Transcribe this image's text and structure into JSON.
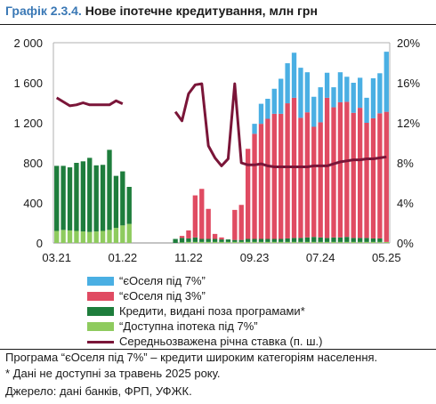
{
  "title": {
    "number": "Графік 2.3.4.",
    "text": "Нове іпотечне кредитування, млн грн"
  },
  "legend": [
    {
      "label": "“єОселя під 7%”",
      "color": "#4aafe3",
      "kind": "bar"
    },
    {
      "label": "“єОселя під 3%”",
      "color": "#e04b62",
      "kind": "bar"
    },
    {
      "label": "Кредити, видані поза програмами*",
      "color": "#1e7d3c",
      "kind": "bar"
    },
    {
      "label": "“Доступна іпотека під 7%”",
      "color": "#8ecb5e",
      "kind": "bar"
    },
    {
      "label": "Середньозважена річна ставка (п. ш.)",
      "color": "#7a1538",
      "kind": "line"
    }
  ],
  "notes": [
    "Програма “єОселя під 7%” – кредити широким категоріям населення.",
    "* Дані не доступні за травень 2025 року.",
    "Джерело: дані банків, ФРП, УФЖК."
  ],
  "chart_data": {
    "type": "bar",
    "stacked": true,
    "left_axis": {
      "ylim": [
        0,
        2000
      ],
      "ticks": [
        "0",
        "400",
        "800",
        "1 200",
        "1 600",
        "2 000"
      ]
    },
    "right_axis": {
      "ylim": [
        0,
        20
      ],
      "ticks": [
        "0%",
        "4%",
        "8%",
        "12%",
        "16%",
        "20%"
      ]
    },
    "x_tick_labels": [
      {
        "index": 0,
        "label": "03.21"
      },
      {
        "index": 10,
        "label": "01.22"
      },
      {
        "index": 20,
        "label": "11.22"
      },
      {
        "index": 30,
        "label": "09.23"
      },
      {
        "index": 40,
        "label": "07.24"
      },
      {
        "index": 50,
        "label": "05.25"
      }
    ],
    "categories_count": 51,
    "series": [
      {
        "name": "Доступна іпотека під 7%",
        "color": "#8ecb5e",
        "values": [
          120,
          130,
          125,
          120,
          115,
          110,
          115,
          120,
          130,
          150,
          175,
          190,
          null,
          null,
          null,
          null,
          null,
          null,
          0,
          5,
          10,
          10,
          10,
          10,
          10,
          10,
          10,
          10,
          10,
          10,
          10,
          10,
          10,
          10,
          10,
          10,
          10,
          10,
          10,
          10,
          10,
          10,
          10,
          10,
          10,
          10,
          10,
          10,
          10,
          10,
          10
        ]
      },
      {
        "name": "Кредити, видані поза програмами",
        "color": "#1e7d3c",
        "values": [
          650,
          640,
          630,
          680,
          700,
          740,
          660,
          660,
          800,
          520,
          540,
          370,
          null,
          null,
          null,
          null,
          null,
          null,
          40,
          45,
          35,
          45,
          30,
          30,
          30,
          25,
          25,
          20,
          20,
          30,
          30,
          30,
          30,
          30,
          30,
          35,
          40,
          40,
          45,
          50,
          45,
          40,
          45,
          45,
          50,
          40,
          40,
          40,
          35,
          35,
          null
        ]
      },
      {
        "name": "єОселя під 3%",
        "color": "#e04b62",
        "values": [
          0,
          0,
          0,
          0,
          0,
          0,
          0,
          0,
          0,
          0,
          0,
          0,
          null,
          null,
          null,
          null,
          null,
          null,
          0,
          20,
          80,
          420,
          500,
          300,
          50,
          20,
          0,
          300,
          350,
          900,
          1050,
          1150,
          1200,
          1250,
          1250,
          1350,
          1400,
          1200,
          1250,
          1100,
          1150,
          1400,
          1300,
          1350,
          1350,
          1250,
          1300,
          1150,
          1200,
          1250,
          1300
        ]
      },
      {
        "name": "єОселя під 7%",
        "color": "#4aafe3",
        "values": [
          0,
          0,
          0,
          0,
          0,
          0,
          0,
          0,
          0,
          0,
          0,
          0,
          null,
          null,
          null,
          null,
          null,
          null,
          0,
          0,
          0,
          0,
          0,
          0,
          0,
          0,
          0,
          0,
          0,
          0,
          100,
          200,
          200,
          250,
          350,
          400,
          450,
          500,
          400,
          300,
          350,
          250,
          200,
          300,
          250,
          300,
          300,
          250,
          400,
          400,
          600
        ]
      }
    ],
    "line": {
      "name": "Середньозважена річна ставка",
      "axis": "right",
      "values": [
        14.5,
        14.1,
        13.7,
        13.8,
        14.0,
        13.8,
        13.8,
        13.8,
        13.8,
        14.2,
        13.9,
        null,
        null,
        null,
        null,
        null,
        null,
        null,
        13.1,
        12.2,
        14.9,
        15.8,
        15.9,
        9.7,
        8.5,
        7.7,
        8.4,
        15.9,
        8.0,
        7.8,
        7.8,
        7.9,
        7.7,
        7.6,
        7.6,
        7.6,
        7.6,
        7.6,
        7.6,
        7.7,
        7.7,
        7.7,
        7.9,
        8.1,
        8.2,
        8.3,
        8.3,
        8.4,
        8.4,
        8.5,
        8.6
      ]
    }
  }
}
